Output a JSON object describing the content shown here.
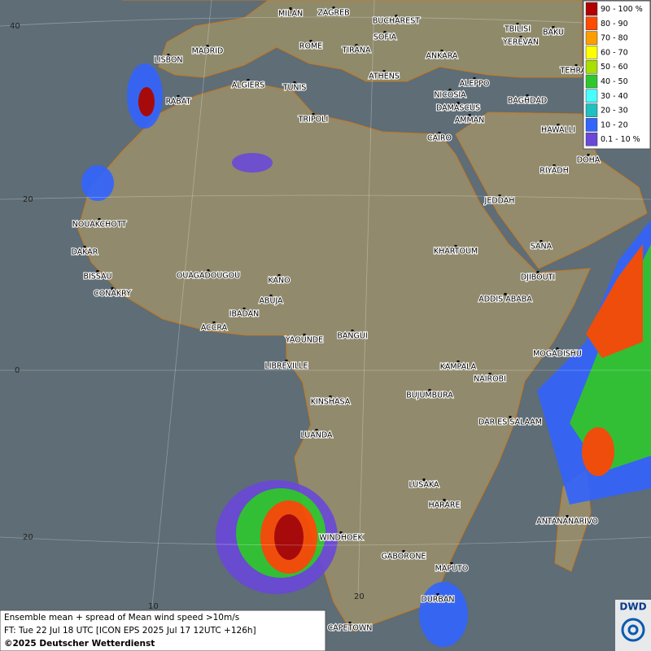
{
  "legend": {
    "entries": [
      {
        "label": "90 - 100 %",
        "color": "#b00000"
      },
      {
        "label": "80 - 90",
        "color": "#ff4a00"
      },
      {
        "label": "70 - 80",
        "color": "#ff9e00"
      },
      {
        "label": "60 - 70",
        "color": "#ffff00"
      },
      {
        "label": "50 - 60",
        "color": "#a8e000"
      },
      {
        "label": "40 - 50",
        "color": "#2ec82e"
      },
      {
        "label": "30 - 40",
        "color": "#48ffff"
      },
      {
        "label": "20 - 30",
        "color": "#1ec0c0"
      },
      {
        "label": "10 - 20",
        "color": "#3264ff"
      },
      {
        "label": "0.1 - 10 %",
        "color": "#6a48d8"
      }
    ]
  },
  "cities": [
    "MILAN",
    "ZAGREB",
    "BUCHAREST",
    "TBILISI",
    "BAKU",
    "SOFIA",
    "YEREVAN",
    "MADRID",
    "ROME",
    "TIRANA",
    "ANKARA",
    "TEHRAN",
    "LISBON",
    "ATHENS",
    "ALGIERS",
    "TUNIS",
    "ALEPPO",
    "RABAT",
    "NICOSIA",
    "BAGHDAD",
    "DAMASCUS",
    "AMMAN",
    "TRIPOLI",
    "HAWALLI",
    "CAIRO",
    "DOHA",
    "RIYADH",
    "JEDDAH",
    "NOUAKCHOTT",
    "SANA",
    "KHARTOUM",
    "DAKAR",
    "BISSAU",
    "OUAGADOUGOU",
    "DJIBOUTI",
    "KANO",
    "CONAKRY",
    "ABUJA",
    "ADDIS ABABA",
    "IBADAN",
    "ACCRA",
    "YAOUNDE",
    "BANGUI",
    "MOGADISHU",
    "LIBREVILLE",
    "KAMPALA",
    "NAIROBI",
    "KINSHASA",
    "BUJUMBURA",
    "DAR ES SALAAM",
    "LUANDA",
    "LUSAKA",
    "HARARE",
    "ANTANANARIVO",
    "WINDHOEK",
    "GABORONE",
    "MAPUTO",
    "DURBAN",
    "CAPETOWN"
  ],
  "latitude_labels": [
    "40",
    "20",
    "0",
    "20"
  ],
  "longitude_labels": [
    "10",
    "20"
  ],
  "caption": [
    "Ensemble mean + spread of Mean wind speed >10m/s",
    "FT: Tue 22 Jul 18 UTC [ICON EPS 2025 Jul 17 12UTC +126h]",
    "©2025 Deutscher Wetterdienst"
  ],
  "logo": "DWD"
}
